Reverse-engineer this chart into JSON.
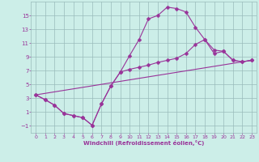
{
  "xlabel": "Windchill (Refroidissement éolien,°C)",
  "bg_color": "#cceee8",
  "grid_color": "#99bbbb",
  "line_color": "#993399",
  "xlim": [
    -0.5,
    23.5
  ],
  "ylim": [
    -2.0,
    17.0
  ],
  "xticks": [
    0,
    1,
    2,
    3,
    4,
    5,
    6,
    7,
    8,
    9,
    10,
    11,
    12,
    13,
    14,
    15,
    16,
    17,
    18,
    19,
    20,
    21,
    22,
    23
  ],
  "yticks": [
    -1,
    1,
    3,
    5,
    7,
    9,
    11,
    13,
    15
  ],
  "line1_x": [
    0,
    1,
    2,
    3,
    4,
    5,
    6,
    7,
    8,
    9,
    10,
    11,
    12,
    13,
    14,
    15,
    16,
    17,
    18,
    19,
    20,
    21,
    22,
    23
  ],
  "line1_y": [
    3.5,
    2.8,
    2.0,
    0.8,
    0.5,
    0.2,
    -0.9,
    2.2,
    4.8,
    6.8,
    9.2,
    11.5,
    14.5,
    15.0,
    16.2,
    16.0,
    15.5,
    13.3,
    11.5,
    10.0,
    9.8,
    8.5,
    8.3,
    8.5
  ],
  "line2_x": [
    0,
    1,
    2,
    3,
    4,
    5,
    6,
    7,
    8,
    9,
    10,
    11,
    12,
    13,
    14,
    15,
    16,
    17,
    18,
    19,
    20,
    21,
    22,
    23
  ],
  "line2_y": [
    3.5,
    2.8,
    2.0,
    0.8,
    0.5,
    0.2,
    -0.9,
    2.2,
    4.8,
    6.8,
    7.2,
    7.5,
    7.8,
    8.2,
    8.5,
    8.8,
    9.5,
    10.8,
    11.5,
    9.5,
    9.8,
    8.5,
    8.3,
    8.5
  ],
  "line3_x": [
    0,
    23
  ],
  "line3_y": [
    3.5,
    8.5
  ],
  "marker": "D",
  "markersize": 2.5,
  "linewidth": 0.8
}
